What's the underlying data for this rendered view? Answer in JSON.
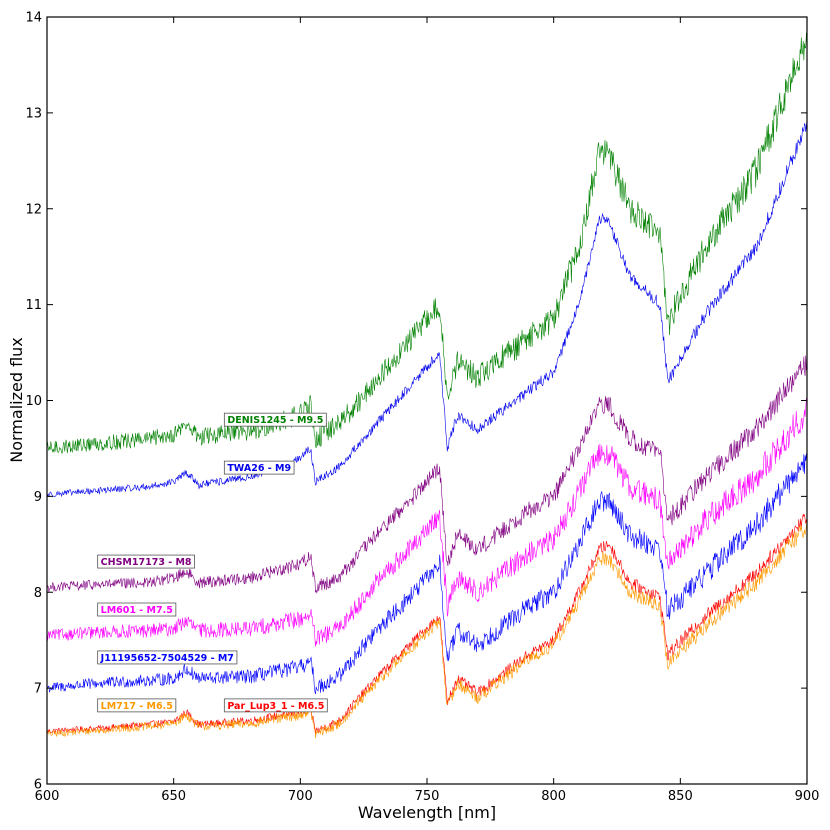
{
  "chart_data": {
    "type": "line",
    "xlabel": "Wavelength [nm]",
    "ylabel": "Normalized flux",
    "xlim": [
      600,
      900
    ],
    "ylim": [
      6,
      14
    ],
    "xticks": [
      600,
      650,
      700,
      750,
      800,
      850,
      900
    ],
    "yticks": [
      6,
      7,
      8,
      9,
      10,
      11,
      12,
      13,
      14
    ],
    "grid": false,
    "series": [
      {
        "name": "Par_Lup3_1 - M6.5",
        "color": "#ff0000",
        "label_at": [
          670,
          6.82
        ],
        "noise": 0.05,
        "x": [
          600,
          620,
          640,
          650,
          655,
          660,
          680,
          700,
          704,
          706,
          715,
          730,
          745,
          755,
          758,
          762,
          770,
          790,
          800,
          810,
          818,
          822,
          830,
          842,
          845,
          860,
          880,
          900
        ],
        "y": [
          6.55,
          6.58,
          6.62,
          6.65,
          6.75,
          6.62,
          6.66,
          6.75,
          6.8,
          6.55,
          6.65,
          7.1,
          7.5,
          7.75,
          6.85,
          7.1,
          6.95,
          7.35,
          7.5,
          8.0,
          8.45,
          8.5,
          8.1,
          7.95,
          7.35,
          7.75,
          8.2,
          8.8
        ]
      },
      {
        "name": "LM717 - M6.5",
        "color": "#ff9900",
        "label_at": [
          620,
          6.82
        ],
        "noise": 0.06,
        "x": [
          600,
          620,
          640,
          650,
          655,
          660,
          680,
          700,
          704,
          706,
          715,
          730,
          745,
          755,
          758,
          762,
          770,
          790,
          800,
          810,
          818,
          822,
          830,
          842,
          845,
          860,
          880,
          900
        ],
        "y": [
          6.52,
          6.56,
          6.6,
          6.63,
          6.72,
          6.6,
          6.63,
          6.72,
          6.78,
          6.52,
          6.62,
          7.05,
          7.45,
          7.7,
          6.8,
          7.05,
          6.9,
          7.3,
          7.45,
          7.9,
          8.35,
          8.35,
          8.0,
          7.85,
          7.25,
          7.65,
          8.1,
          8.7
        ]
      },
      {
        "name": "J11195652-7504529 - M7",
        "color": "#0000ff",
        "label_at": [
          620,
          7.32
        ],
        "noise": 0.09,
        "x": [
          600,
          620,
          640,
          650,
          655,
          660,
          680,
          700,
          704,
          706,
          715,
          730,
          745,
          755,
          758,
          762,
          770,
          790,
          800,
          810,
          818,
          822,
          830,
          842,
          845,
          860,
          880,
          900
        ],
        "y": [
          7.0,
          7.05,
          7.08,
          7.1,
          7.2,
          7.1,
          7.12,
          7.22,
          7.28,
          7.0,
          7.12,
          7.6,
          8.0,
          8.3,
          7.3,
          7.6,
          7.45,
          7.85,
          8.0,
          8.5,
          8.95,
          8.95,
          8.6,
          8.45,
          7.8,
          8.2,
          8.7,
          9.4
        ]
      },
      {
        "name": "LM601 - M7.5",
        "color": "#ff00ff",
        "label_at": [
          620,
          7.82
        ],
        "noise": 0.1,
        "x": [
          600,
          620,
          640,
          650,
          655,
          660,
          680,
          700,
          704,
          706,
          715,
          730,
          745,
          755,
          758,
          762,
          770,
          790,
          800,
          810,
          818,
          822,
          830,
          842,
          845,
          860,
          880,
          900
        ],
        "y": [
          7.55,
          7.58,
          7.6,
          7.62,
          7.7,
          7.6,
          7.62,
          7.72,
          7.78,
          7.5,
          7.62,
          8.1,
          8.5,
          8.8,
          7.85,
          8.15,
          8.0,
          8.4,
          8.55,
          9.05,
          9.45,
          9.45,
          9.1,
          8.95,
          8.3,
          8.75,
          9.2,
          9.9
        ]
      },
      {
        "name": "CHSM17173 - M8",
        "color": "#800080",
        "label_at": [
          620,
          8.32
        ],
        "noise": 0.08,
        "x": [
          600,
          620,
          640,
          650,
          655,
          660,
          680,
          700,
          704,
          706,
          715,
          730,
          745,
          755,
          758,
          762,
          770,
          790,
          800,
          810,
          818,
          822,
          830,
          842,
          845,
          860,
          880,
          900
        ],
        "y": [
          8.05,
          8.08,
          8.1,
          8.15,
          8.22,
          8.1,
          8.15,
          8.3,
          8.38,
          8.05,
          8.15,
          8.6,
          9.0,
          9.3,
          8.3,
          8.6,
          8.45,
          8.85,
          9.0,
          9.5,
          9.95,
          9.95,
          9.6,
          9.45,
          8.75,
          9.2,
          9.7,
          10.4
        ]
      },
      {
        "name": "TWA26 - M9",
        "color": "#0000ee",
        "label_at": [
          670,
          9.3
        ],
        "noise": 0.05,
        "x": [
          600,
          620,
          640,
          650,
          655,
          660,
          680,
          700,
          704,
          706,
          715,
          730,
          745,
          755,
          758,
          762,
          770,
          790,
          800,
          810,
          818,
          822,
          830,
          842,
          845,
          860,
          880,
          900
        ],
        "y": [
          9.02,
          9.06,
          9.1,
          9.15,
          9.25,
          9.12,
          9.2,
          9.4,
          9.5,
          9.15,
          9.3,
          9.75,
          10.2,
          10.5,
          9.5,
          9.85,
          9.7,
          10.1,
          10.3,
          11.0,
          11.9,
          11.85,
          11.3,
          11.0,
          10.2,
          10.9,
          11.6,
          12.9
        ]
      },
      {
        "name": "DENIS1245 - M9.5",
        "color": "#008000",
        "label_at": [
          670,
          9.8
        ],
        "noise": 0.12,
        "x": [
          600,
          620,
          640,
          650,
          655,
          660,
          680,
          700,
          704,
          706,
          715,
          730,
          745,
          755,
          758,
          762,
          770,
          790,
          800,
          810,
          818,
          822,
          830,
          842,
          845,
          860,
          880,
          900
        ],
        "y": [
          9.5,
          9.55,
          9.6,
          9.65,
          9.75,
          9.62,
          9.68,
          9.85,
          9.95,
          9.6,
          9.75,
          10.2,
          10.7,
          11.0,
          10.0,
          10.4,
          10.25,
          10.65,
          10.85,
          11.6,
          12.6,
          12.55,
          12.0,
          11.7,
          10.8,
          11.6,
          12.4,
          13.8
        ]
      }
    ]
  }
}
